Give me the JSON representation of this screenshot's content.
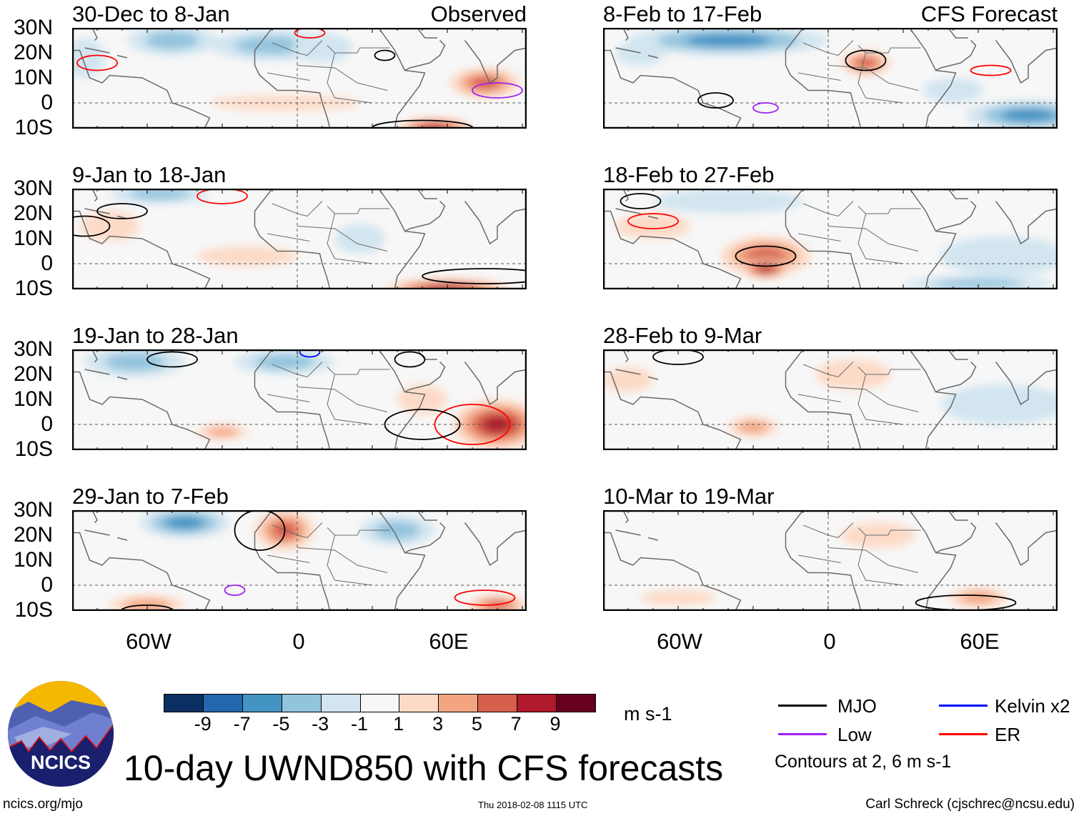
{
  "panels": [
    {
      "title": "30-Dec to 8-Jan",
      "label": "Observed",
      "features": [
        [
          -50,
          25,
          18,
          6,
          -5
        ],
        [
          -10,
          23,
          25,
          6,
          -5
        ],
        [
          10,
          22,
          12,
          6,
          -3
        ],
        [
          75,
          8,
          14,
          6,
          7
        ],
        [
          55,
          -10,
          15,
          4,
          9
        ],
        [
          -5,
          0,
          30,
          3,
          3
        ],
        [
          -85,
          18,
          8,
          8,
          -3
        ]
      ],
      "contours": [
        [
          -80,
          16,
          8,
          3,
          "#ff0000"
        ],
        [
          5,
          28,
          6,
          2,
          "#ff0000"
        ],
        [
          35,
          19,
          4,
          2,
          "#000"
        ],
        [
          80,
          5,
          10,
          3,
          "#a020f0"
        ],
        [
          50,
          -10,
          20,
          3,
          "#000"
        ]
      ]
    },
    {
      "title": "9-Jan to 18-Jan",
      "label": "",
      "features": [
        [
          -55,
          28,
          20,
          4,
          -5
        ],
        [
          -75,
          15,
          12,
          6,
          3
        ],
        [
          60,
          -10,
          25,
          4,
          9
        ],
        [
          -20,
          3,
          20,
          4,
          3
        ],
        [
          25,
          10,
          10,
          6,
          -3
        ]
      ],
      "contours": [
        [
          -70,
          21,
          10,
          3,
          "#000"
        ],
        [
          -30,
          27,
          10,
          3,
          "#ff0000"
        ],
        [
          -85,
          15,
          10,
          4,
          "#000"
        ],
        [
          75,
          -5,
          25,
          3,
          "#000"
        ]
      ]
    },
    {
      "title": "19-Jan to 28-Jan",
      "label": "",
      "features": [
        [
          -65,
          25,
          20,
          6,
          -5
        ],
        [
          -5,
          25,
          20,
          5,
          -5
        ],
        [
          80,
          0,
          18,
          10,
          9
        ],
        [
          50,
          10,
          10,
          6,
          3
        ],
        [
          -30,
          -3,
          10,
          3,
          5
        ]
      ],
      "contours": [
        [
          -50,
          26,
          10,
          3,
          "#000"
        ],
        [
          5,
          29,
          4,
          2,
          "#0000ff"
        ],
        [
          70,
          0,
          15,
          8,
          "#ff0000"
        ],
        [
          50,
          0,
          15,
          6,
          "#000"
        ],
        [
          45,
          26,
          6,
          3,
          "#000"
        ]
      ]
    },
    {
      "title": "29-Jan to 7-Feb",
      "label": "",
      "features": [
        [
          -45,
          25,
          18,
          6,
          -7
        ],
        [
          -5,
          22,
          12,
          8,
          7
        ],
        [
          40,
          22,
          15,
          6,
          -5
        ],
        [
          -60,
          -8,
          15,
          4,
          5
        ],
        [
          80,
          -8,
          12,
          4,
          7
        ],
        [
          20,
          5,
          20,
          5,
          -1
        ]
      ],
      "contours": [
        [
          -15,
          22,
          10,
          8,
          "#000"
        ],
        [
          -25,
          -2,
          4,
          2,
          "#a020f0"
        ],
        [
          75,
          -5,
          12,
          3,
          "#ff0000"
        ],
        [
          -60,
          -10,
          10,
          2,
          "#000"
        ]
      ]
    },
    {
      "title": "8-Feb to 17-Feb",
      "label": "CFS Forecast",
      "features": [
        [
          -40,
          25,
          40,
          6,
          -7
        ],
        [
          15,
          16,
          10,
          5,
          7
        ],
        [
          -30,
          0,
          20,
          5,
          1
        ],
        [
          80,
          -5,
          25,
          6,
          -7
        ],
        [
          50,
          5,
          12,
          5,
          -3
        ],
        [
          -75,
          20,
          10,
          5,
          -3
        ]
      ],
      "contours": [
        [
          15,
          17,
          8,
          4,
          "#000"
        ],
        [
          -45,
          1,
          7,
          3,
          "#000"
        ],
        [
          -25,
          -2,
          5,
          2,
          "#a020f0"
        ],
        [
          65,
          13,
          8,
          2,
          "#ff0000"
        ]
      ]
    },
    {
      "title": "18-Feb to 27-Feb",
      "label": "",
      "features": [
        [
          -25,
          3,
          18,
          8,
          7
        ],
        [
          -25,
          -2,
          10,
          4,
          9
        ],
        [
          -40,
          25,
          30,
          5,
          -3
        ],
        [
          70,
          3,
          25,
          8,
          -3
        ],
        [
          60,
          -8,
          30,
          3,
          -5
        ],
        [
          -70,
          15,
          15,
          5,
          3
        ]
      ],
      "contours": [
        [
          -25,
          3,
          12,
          4,
          "#000"
        ],
        [
          -70,
          17,
          10,
          3,
          "#ff0000"
        ],
        [
          -75,
          25,
          8,
          3,
          "#000"
        ]
      ]
    },
    {
      "title": "28-Feb to 9-Mar",
      "label": "",
      "features": [
        [
          -30,
          -1,
          10,
          4,
          5
        ],
        [
          -80,
          18,
          10,
          5,
          3
        ],
        [
          70,
          8,
          25,
          8,
          -3
        ],
        [
          10,
          20,
          15,
          6,
          3
        ]
      ],
      "contours": [
        [
          -60,
          27,
          10,
          3,
          "#000"
        ]
      ]
    },
    {
      "title": "10-Mar to 19-Mar",
      "label": "",
      "features": [
        [
          60,
          -5,
          12,
          4,
          5
        ],
        [
          20,
          20,
          15,
          5,
          3
        ],
        [
          -60,
          -5,
          15,
          3,
          3
        ]
      ],
      "contours": [
        [
          55,
          -7,
          20,
          3,
          "#000"
        ]
      ]
    }
  ],
  "lat_labels": [
    "30N",
    "20N",
    "10N",
    "0",
    "10S"
  ],
  "lon_labels": [
    "60W",
    "0",
    "60E"
  ],
  "colorbar": {
    "ticks": [
      "-9",
      "-7",
      "-5",
      "-3",
      "-1",
      "1",
      "3",
      "5",
      "7",
      "9"
    ],
    "colors": [
      "#0b2f63",
      "#2367ae",
      "#4393c3",
      "#93c4de",
      "#d2e5f0",
      "#f7f7f7",
      "#fddac6",
      "#f3a581",
      "#d6604d",
      "#b0182b",
      "#67001f"
    ],
    "unit": "m s-1"
  },
  "legend": {
    "items": [
      {
        "label": "MJO",
        "color": "#000000"
      },
      {
        "label": "Kelvin x2",
        "color": "#0000ff"
      },
      {
        "label": "Low",
        "color": "#a020f0"
      },
      {
        "label": "ER",
        "color": "#ff0000"
      }
    ],
    "note": "Contours at 2, 6 m s-1"
  },
  "title": "10-day UWND850 with CFS forecasts",
  "logo_text": "NCICS",
  "footer": {
    "url": "ncics.org/mjo",
    "timestamp": "Thu 2018-02-08 1115 UTC",
    "credit": "Carl Schreck (cjschrec@ncsu.edu)"
  }
}
